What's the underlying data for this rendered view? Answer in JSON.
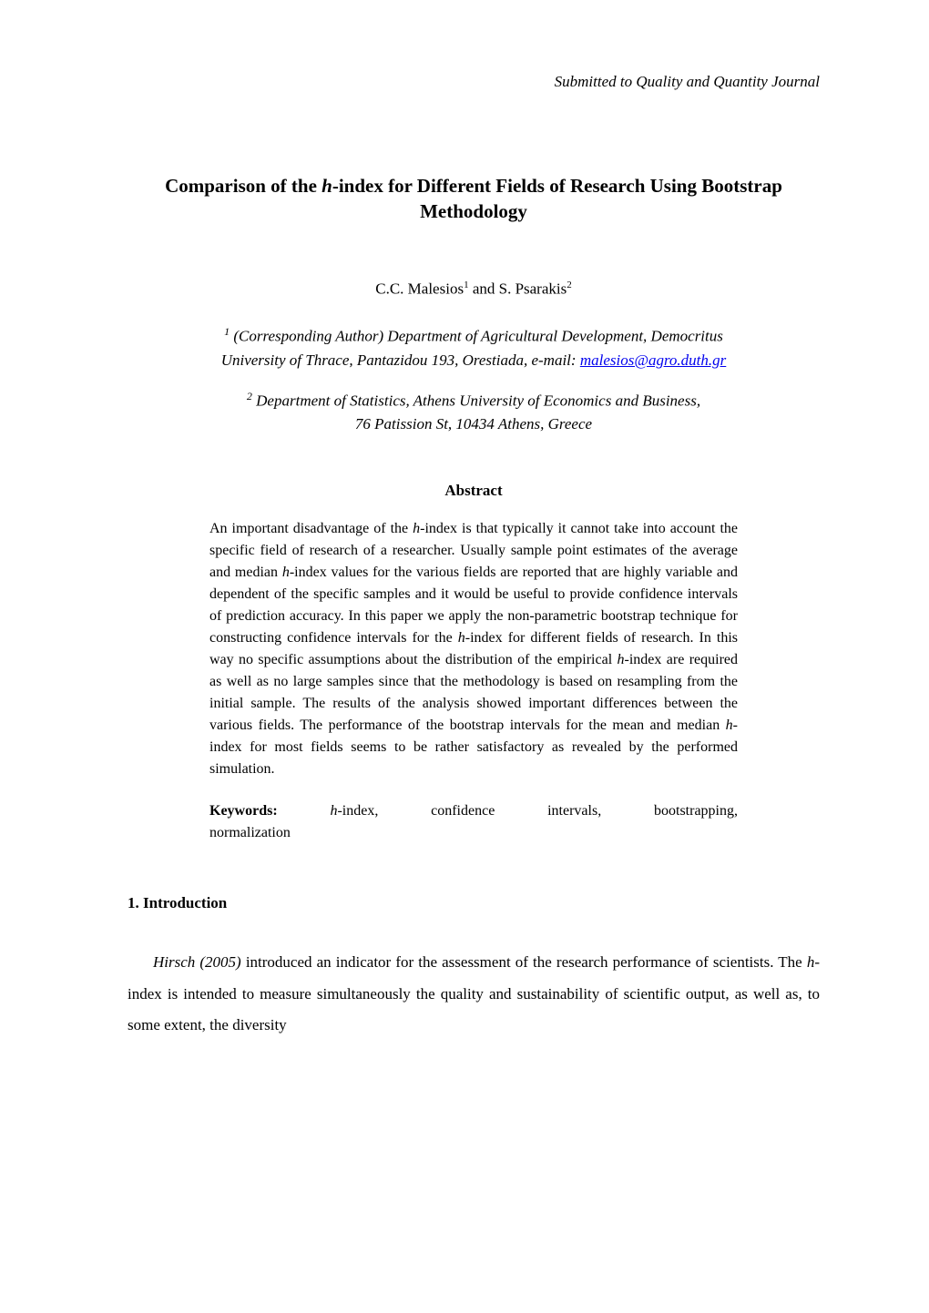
{
  "journal_header": "Submitted to Quality and Quantity Journal",
  "title_pre": "Comparison of the ",
  "title_h": "h",
  "title_post": "-index for Different Fields of Research Using Bootstrap Methodology",
  "authors_pre": "C.C. Malesios",
  "authors_sup1": "1",
  "authors_mid": " and S. Psarakis",
  "authors_sup2": "2",
  "aff1_sup": "1",
  "aff1_line1": " (Corresponding Author) Department of Agricultural Development, Democritus",
  "aff1_line2_pre": "University of Thrace, Pantazidou 193, Orestiada, e-mail: ",
  "aff1_email": "malesios@agro.duth.gr",
  "aff2_sup": "2",
  "aff2_line1": " Department of Statistics, Athens University of Economics and Business,",
  "aff2_line2": "76 Patission St, 10434 Athens, Greece",
  "abstract_heading": "Abstract",
  "abstract_s1_pre": "An important disadvantage of the ",
  "abstract_s1_h": "h",
  "abstract_s1_post": "-index is that typically it cannot take into account the specific field of research of a researcher. Usually sample point estimates of the average and median ",
  "abstract_s1_h2": "h-",
  "abstract_s1_post2": "index values for the various fields are reported that are highly variable and dependent of the specific samples and it would be useful to provide confidence intervals of prediction accuracy. In this paper we apply the non-parametric bootstrap technique for constructing confidence intervals for the ",
  "abstract_s1_h3": "h",
  "abstract_s1_post3": "-index for different fields of research. In this way no specific assumptions about the distribution of the empirical ",
  "abstract_s1_h4": "h",
  "abstract_s1_post4": "-index are required as well as no large samples since that the methodology is based on resampling from the initial sample. The results of the analysis showed important differences between the various fields. The performance of the bootstrap intervals for the mean and median ",
  "abstract_s1_h5": "h",
  "abstract_s1_post5": "-index for most fields seems to be rather satisfactory as revealed by the performed simulation.",
  "keywords_label": "Keywords:",
  "keywords_h": "h-",
  "keywords_w1": "index,",
  "keywords_w2": "confidence",
  "keywords_w3": "intervals,",
  "keywords_w4": "bootstrapping,",
  "keywords_line2": "normalization",
  "section1_heading": "1.  Introduction",
  "intro_ref": "Hirsch (2005)",
  "intro_post1": " introduced an indicator for the assessment of the research performance of scientists. The ",
  "intro_h": "h",
  "intro_post2": "-index is intended to measure simultaneously the quality and sustainability of scientific output, as well as, to some extent, the diversity"
}
